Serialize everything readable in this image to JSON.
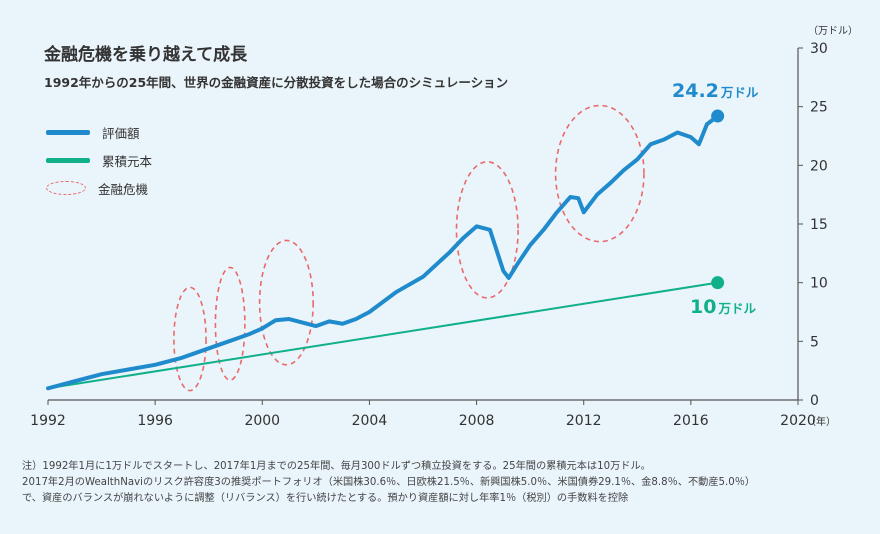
{
  "header": {
    "title": "金融危機を乗り越えて成長",
    "subtitle": "1992年からの25年間、世界の金融資産に分散投資をした場合のシミュレーション"
  },
  "colors": {
    "value_line": "#1f8bcc",
    "principal_line": "#10b08a",
    "crisis": "#e96a6a",
    "axis": "#555555",
    "background": "#eaf4fb"
  },
  "chart_data": {
    "type": "line",
    "xlim": [
      1992,
      2020
    ],
    "ylim": [
      0,
      30
    ],
    "x_ticks": [
      "1992",
      "1996",
      "2000",
      "2004",
      "2008",
      "2012",
      "2016",
      "2020"
    ],
    "y_ticks": [
      "0",
      "5",
      "10",
      "15",
      "20",
      "25",
      "30"
    ],
    "x_unit": "（年）",
    "y_unit": "（万ドル）",
    "grid": false,
    "legend_position": "top-left",
    "series": [
      {
        "name": "評価額",
        "x": [
          1992.0,
          1993.0,
          1994.0,
          1995.0,
          1996.0,
          1997.0,
          1997.5,
          1998.5,
          1999.0,
          1999.5,
          2000.0,
          2000.5,
          2001.0,
          2001.5,
          2002.0,
          2002.5,
          2003.0,
          2003.5,
          2004.0,
          2005.0,
          2006.0,
          2007.0,
          2007.5,
          2008.0,
          2008.5,
          2009.0,
          2009.2,
          2009.5,
          2010.0,
          2010.5,
          2011.0,
          2011.5,
          2011.8,
          2012.0,
          2012.5,
          2013.0,
          2013.5,
          2014.0,
          2014.5,
          2015.0,
          2015.5,
          2016.0,
          2016.3,
          2016.6,
          2017.0
        ],
        "y": [
          1.0,
          1.6,
          2.2,
          2.6,
          3.0,
          3.6,
          4.0,
          4.8,
          5.2,
          5.6,
          6.1,
          6.8,
          6.9,
          6.6,
          6.3,
          6.7,
          6.5,
          6.9,
          7.5,
          9.2,
          10.5,
          12.6,
          13.8,
          14.8,
          14.5,
          11.0,
          10.4,
          11.5,
          13.2,
          14.5,
          16.0,
          17.3,
          17.2,
          16.0,
          17.5,
          18.5,
          19.6,
          20.5,
          21.8,
          22.2,
          22.8,
          22.4,
          21.8,
          23.5,
          24.2
        ]
      },
      {
        "name": "累積元本",
        "x": [
          1992.0,
          2017.0
        ],
        "y": [
          1.0,
          10.0
        ]
      }
    ],
    "crisis_label": "金融危機",
    "crisis_periods": [
      {
        "cx": 1997.3,
        "cy": 5.2,
        "rx": 0.6,
        "ry": 4.4
      },
      {
        "cx": 1998.8,
        "cy": 6.5,
        "rx": 0.55,
        "ry": 4.8
      },
      {
        "cx": 2000.9,
        "cy": 8.3,
        "rx": 1.0,
        "ry": 5.3
      },
      {
        "cx": 2008.4,
        "cy": 14.5,
        "rx": 1.15,
        "ry": 5.8
      },
      {
        "cx": 2012.6,
        "cy": 19.3,
        "rx": 1.65,
        "ry": 5.8
      }
    ],
    "end_labels": {
      "value": {
        "num": "24.2",
        "unit": "万ドル"
      },
      "principal": {
        "num": "10",
        "unit": "万ドル"
      }
    }
  },
  "note": {
    "line1": "注）1992年1月に1万ドルでスタートし、2017年1月までの25年間、毎月300ドルずつ積立投資をする。25年間の累積元本は10万ドル。",
    "line2": "2017年2月のWealthNaviのリスク許容度3の推奨ポートフォリオ（米国株30.6％、日欧株21.5％、新興国株5.0％、米国債券29.1％、金8.8％、不動産5.0％）",
    "line3": "で、資産のバランスが崩れないように調整（リバランス）を行い続けたとする。預かり資産額に対し年率1％（税別）の手数料を控除"
  }
}
